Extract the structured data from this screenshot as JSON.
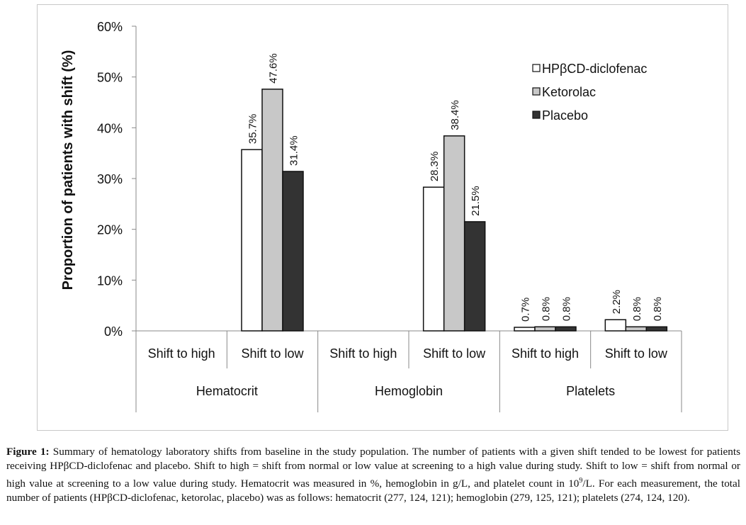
{
  "chart_data": {
    "type": "bar",
    "title": "",
    "ylabel": "Proportion of patients with shift (%)",
    "xlabel": "",
    "ylim": [
      0,
      60
    ],
    "yticks": [
      0,
      10,
      20,
      30,
      40,
      50,
      60
    ],
    "ytick_labels": [
      "0%",
      "10%",
      "20%",
      "30%",
      "40%",
      "50%",
      "60%"
    ],
    "grid": false,
    "legend_position": "top-right",
    "groups": [
      "Hematocrit",
      "Hemoglobin",
      "Platelets"
    ],
    "categories": [
      "Shift to high",
      "Shift to low",
      "Shift to high",
      "Shift to low",
      "Shift to high",
      "Shift to low"
    ],
    "category_group_index": [
      0,
      0,
      1,
      1,
      2,
      2
    ],
    "series": [
      {
        "name": "HPβCD-diclofenac",
        "color": "#ffffff",
        "values": [
          null,
          35.7,
          null,
          28.3,
          0.7,
          2.2
        ],
        "labels": [
          "",
          "35.7%",
          "",
          "28.3%",
          "0.7%",
          "2.2%"
        ]
      },
      {
        "name": "Ketorolac",
        "color": "#c8c8c8",
        "values": [
          null,
          47.6,
          null,
          38.4,
          0.8,
          0.8
        ],
        "labels": [
          "",
          "47.6%",
          "",
          "38.4%",
          "0.8%",
          "0.8%"
        ]
      },
      {
        "name": "Placebo",
        "color": "#333333",
        "values": [
          null,
          31.4,
          null,
          21.5,
          0.8,
          0.8
        ],
        "labels": [
          "",
          "31.4%",
          "",
          "21.5%",
          "0.8%",
          "0.8%"
        ]
      }
    ]
  },
  "caption": {
    "label": "Figure 1:",
    "text": " Summary of hematology laboratory shifts from baseline in the study population. The number of patients with a given shift tended to be lowest for patients receiving HPβCD-diclofenac and placebo. Shift to high = shift from normal or low value at screening to a high value during study. Shift to low = shift from normal or high value at screening to a low value during study. Hematocrit was measured in %, hemoglobin in g/L, and platelet count in 10",
    "superscript": "9",
    "text_after": "/L. For each measurement, the total number of patients (HPβCD-diclofenac, ketorolac, placebo) was as follows: hematocrit (277, 124, 121); hemoglobin (279, 125, 121); platelets (274, 124, 120)."
  }
}
